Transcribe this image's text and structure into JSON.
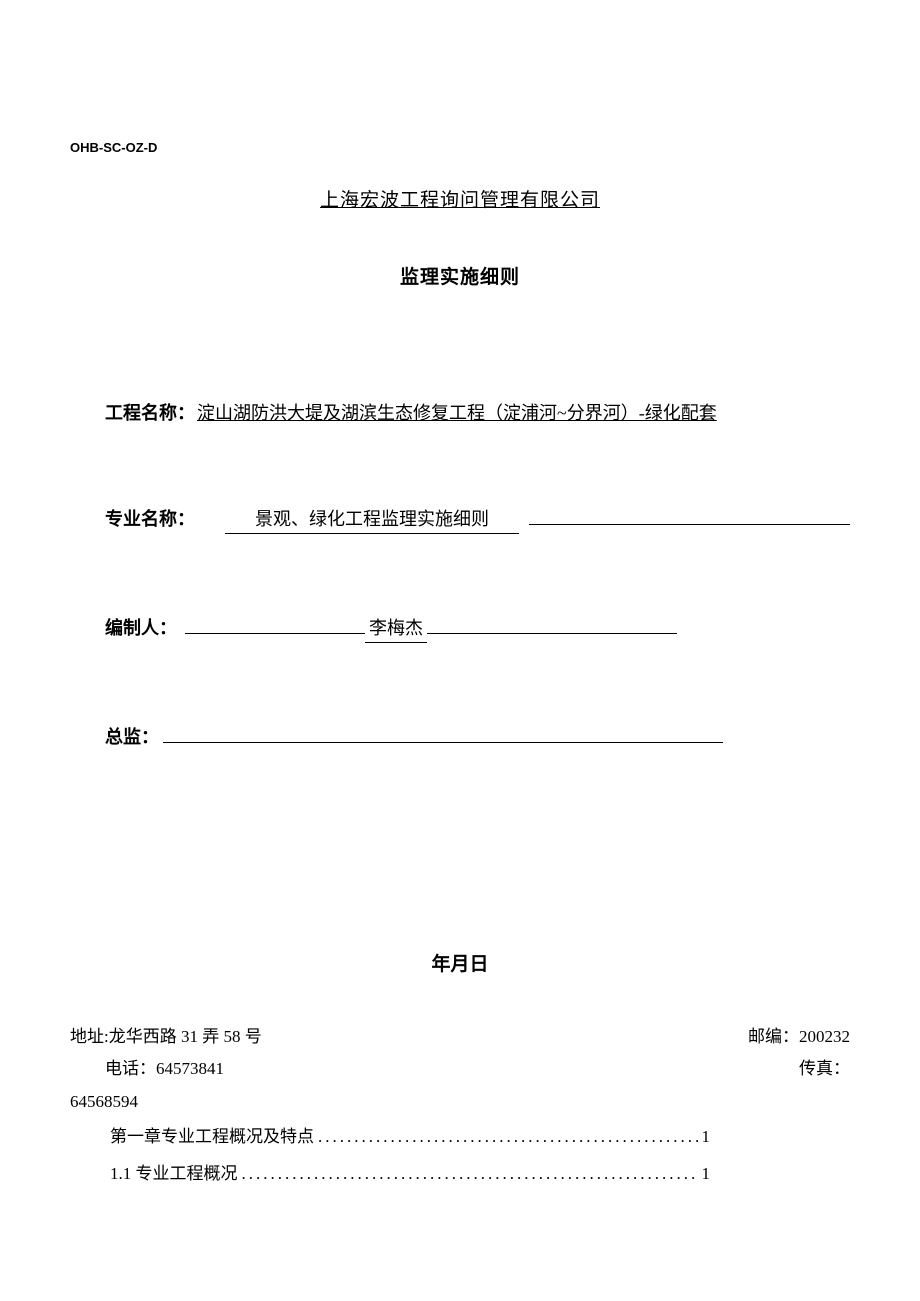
{
  "header": {
    "doc_code": "OHB-SC-OZ-D",
    "company_name": "上海宏波工程询问管理有限公司",
    "doc_title": "监理实施细则"
  },
  "fields": {
    "project_name_label": "工程名称：",
    "project_name_value": "淀山湖防洪大堤及湖滨生态修复工程（淀浦河~分界河）-绿化配套",
    "specialty_label": "专业名称：",
    "specialty_value": "景观、绿化工程监理实施细则",
    "compiler_label": "编制人：",
    "compiler_value": "李梅杰",
    "supervisor_label": "总监："
  },
  "date_line": "年月日",
  "footer": {
    "address_label": "地址:",
    "address_value": "龙华西路 31 弄 58 号",
    "postcode_label": "邮编：",
    "postcode_value": "200232",
    "phone_label": "电话：",
    "phone_value": "64573841",
    "fax_label": "传真：",
    "fax_value": "64568594"
  },
  "toc": [
    {
      "title": "第一章专业工程概况及特点",
      "page": "1"
    },
    {
      "title": "1.1 专业工程概况",
      "page": "1"
    }
  ],
  "colors": {
    "text": "#000000",
    "background": "#ffffff"
  }
}
